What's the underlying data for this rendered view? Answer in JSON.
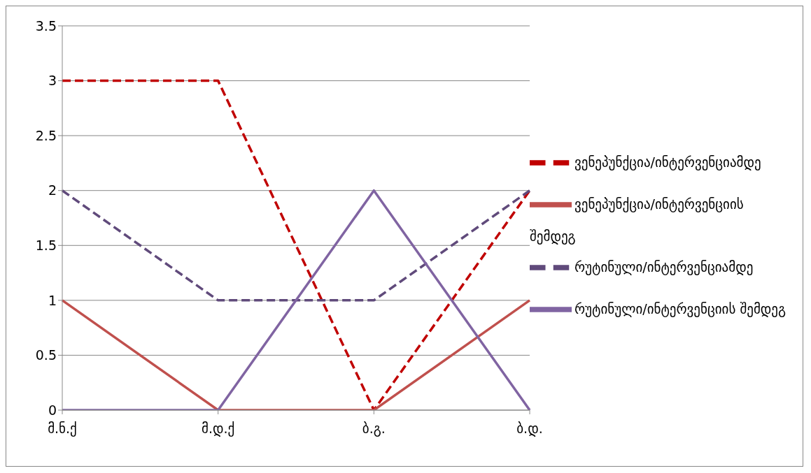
{
  "chart_data": {
    "type": "line",
    "categories": [
      "მ.ნ.ქ",
      "მ.დ.ქ",
      "ბ.გ.",
      "ბ.დ."
    ],
    "series": [
      {
        "name": "ვენეპუნქცია/ინტერვენციამდე",
        "color": "#c00000",
        "values": [
          3,
          3,
          0,
          2
        ],
        "line_style": "dashed"
      },
      {
        "name": "ვენეპუნქცია/ინტერვენციის შემდეგ",
        "color": "#c0504d",
        "values": [
          1,
          0,
          0,
          1
        ],
        "line_style": "solid"
      },
      {
        "name": "რუტინული/ინტერვენციამდე",
        "color": "#604a7b",
        "values": [
          2,
          1,
          1,
          2
        ],
        "line_style": "dashed"
      },
      {
        "name": "რუტინული/ინტერვენციის შემდეგ",
        "color": "#8064a2",
        "values": [
          0,
          0,
          2,
          0
        ],
        "line_style": "solid"
      }
    ],
    "ylim": [
      0,
      3.5
    ],
    "yticks": [
      0,
      0.5,
      1,
      1.5,
      2,
      2.5,
      3,
      3.5
    ],
    "grid": "y",
    "legend": "right",
    "marker": "none"
  }
}
